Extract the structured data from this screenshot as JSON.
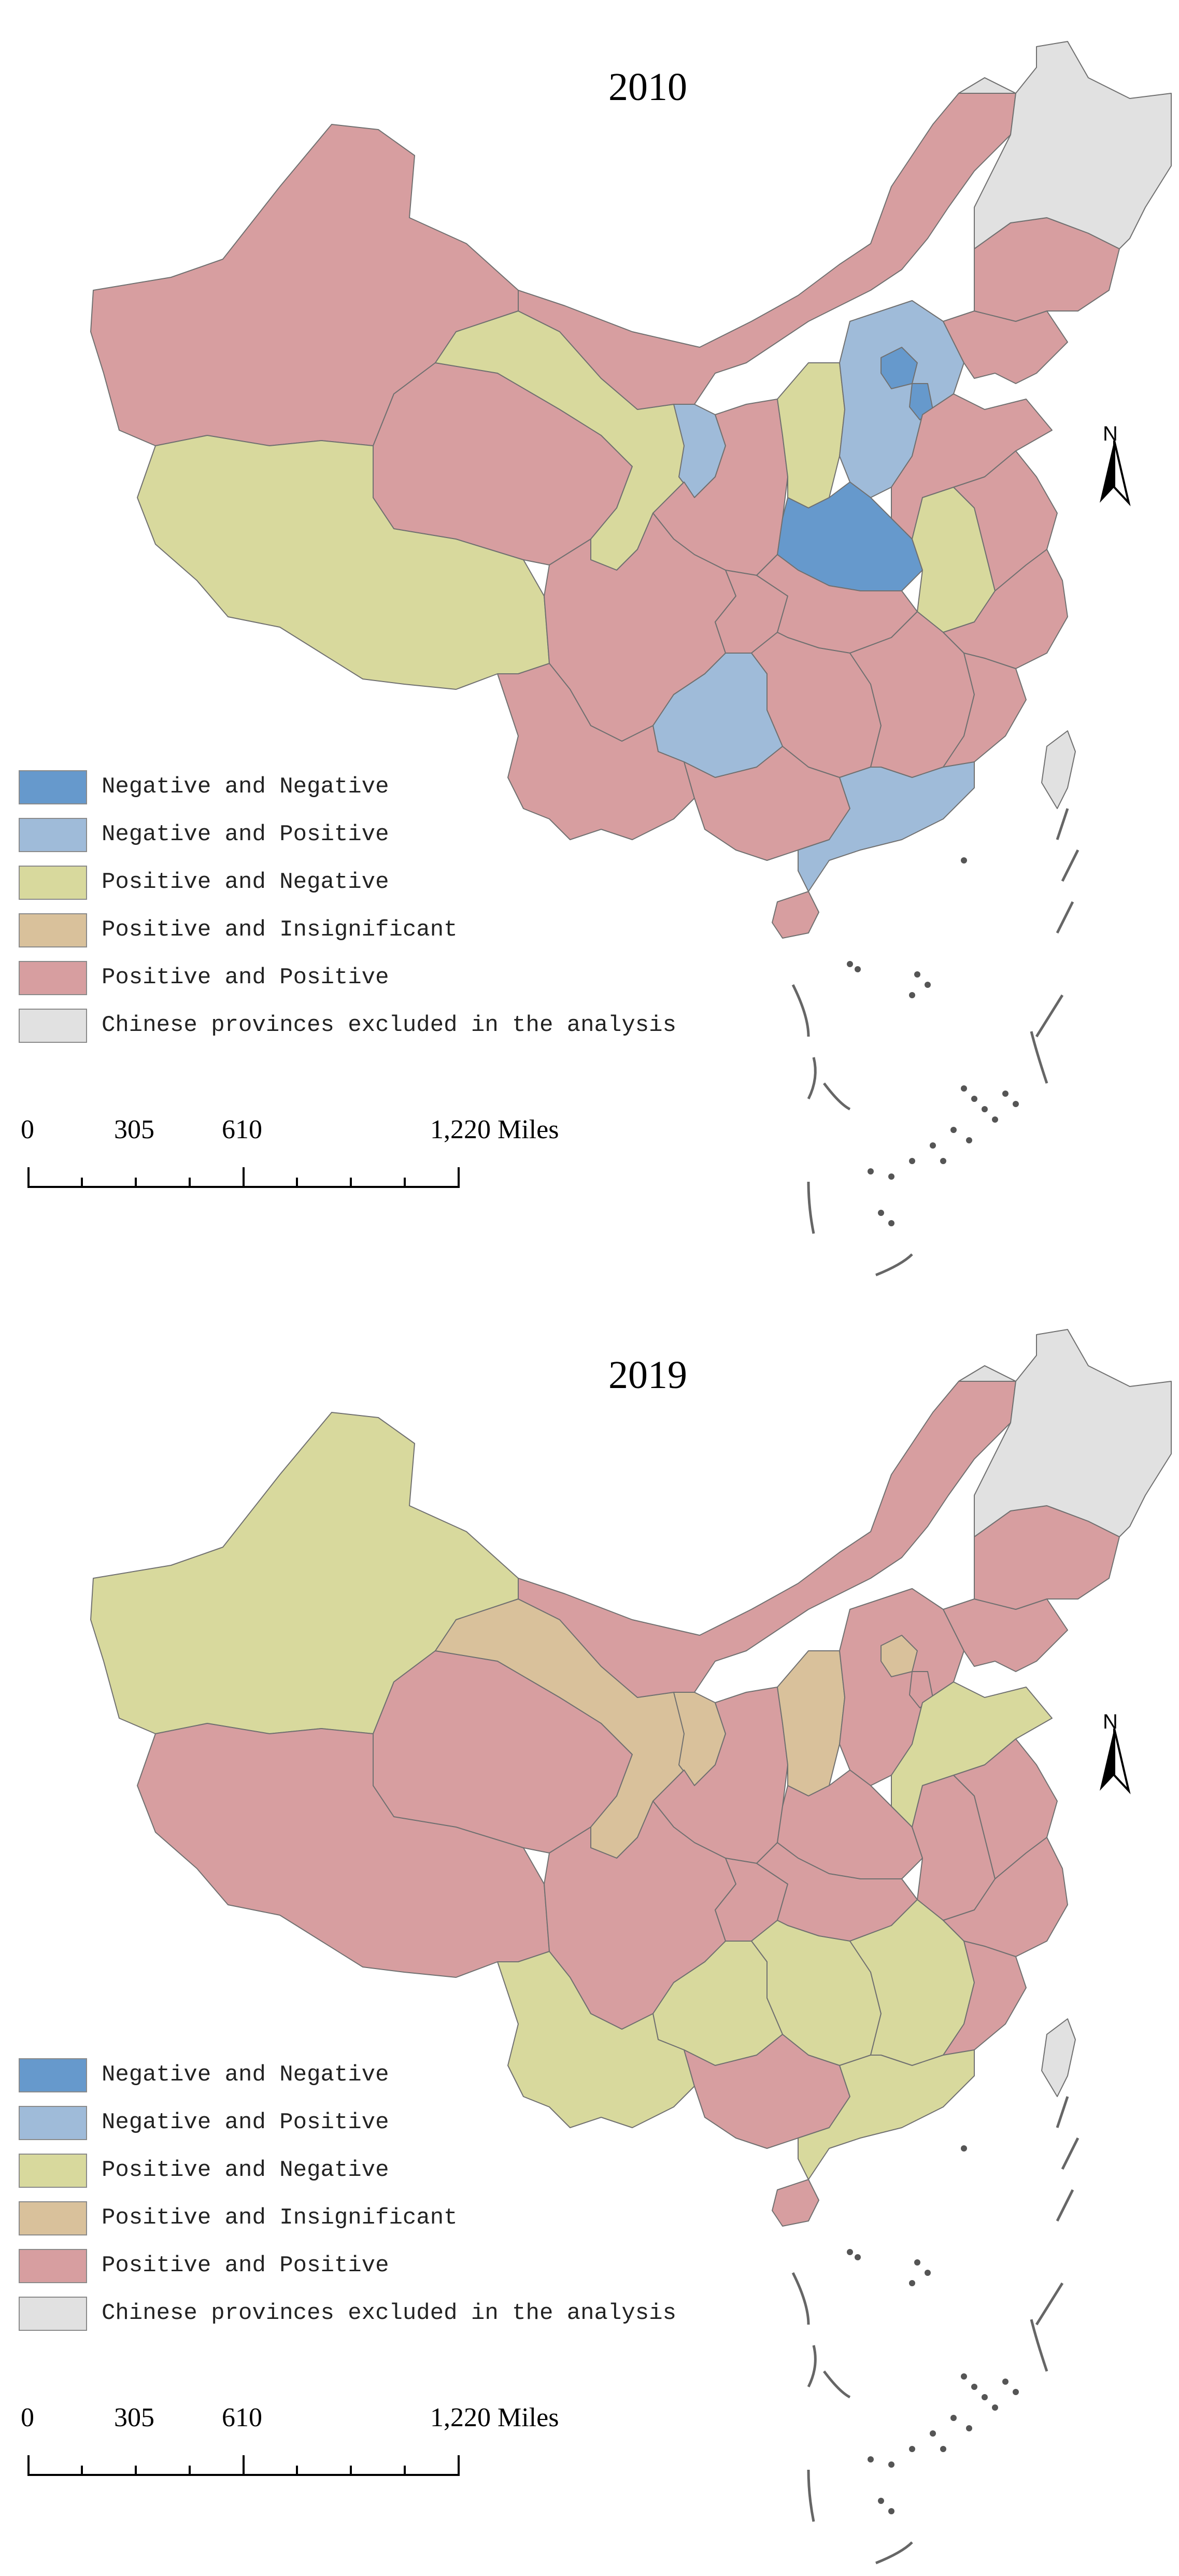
{
  "legend": [
    {
      "label": "Negative and Negative",
      "color": "#6699cc"
    },
    {
      "label": "Negative and Positive",
      "color": "#9fbbd9"
    },
    {
      "label": "Positive and Negative",
      "color": "#d8d99d"
    },
    {
      "label": "Positive and Insignificant",
      "color": "#d9c19b"
    },
    {
      "label": "Positive and Positive",
      "color": "#d79ea0"
    },
    {
      "label": "Chinese provinces excluded in the analysis",
      "color": "#e1e1e1"
    }
  ],
  "scale": {
    "labels": [
      "0",
      "305",
      "610",
      "1,220 Miles"
    ]
  },
  "north_label": "N",
  "maps": [
    {
      "year": "2010",
      "provinces": {
        "xinjiang": "Positive and Positive",
        "tibet": "Positive and Negative",
        "qinghai": "Positive and Positive",
        "gansu": "Positive and Negative",
        "inner_mongolia": "Positive and Positive",
        "ningxia": "Negative and Positive",
        "shaanxi": "Positive and Positive",
        "shanxi": "Positive and Negative",
        "hebei": "Negative and Positive",
        "beijing": "Negative and Negative",
        "tianjin": "Negative and Negative",
        "henan": "Negative and Negative",
        "shandong": "Positive and Positive",
        "anhui": "Positive and Negative",
        "jiangsu": "Positive and Positive",
        "sichuan": "Positive and Positive",
        "chongqing": "Positive and Positive",
        "hubei": "Positive and Positive",
        "hunan": "Positive and Positive",
        "jiangxi": "Positive and Positive",
        "zhejiang": "Positive and Positive",
        "fujian": "Positive and Positive",
        "guizhou": "Negative and Positive",
        "yunnan": "Positive and Positive",
        "guangxi": "Positive and Positive",
        "guangdong": "Negative and Positive",
        "hainan": "Positive and Positive",
        "liaoning": "Positive and Positive",
        "jilin": "Positive and Positive",
        "heilongjiang": "Chinese provinces excluded in the analysis",
        "taiwan": "Chinese provinces excluded in the analysis"
      }
    },
    {
      "year": "2019",
      "provinces": {
        "xinjiang": "Positive and Negative",
        "tibet": "Positive and Positive",
        "qinghai": "Positive and Positive",
        "gansu": "Positive and Insignificant",
        "inner_mongolia": "Positive and Positive",
        "ningxia": "Positive and Insignificant",
        "shaanxi": "Positive and Positive",
        "shanxi": "Positive and Insignificant",
        "hebei": "Positive and Positive",
        "beijing": "Positive and Insignificant",
        "tianjin": "Positive and Positive",
        "henan": "Positive and Positive",
        "shandong": "Positive and Negative",
        "anhui": "Positive and Positive",
        "jiangsu": "Positive and Positive",
        "sichuan": "Positive and Positive",
        "chongqing": "Positive and Positive",
        "hubei": "Positive and Positive",
        "hunan": "Positive and Negative",
        "jiangxi": "Positive and Negative",
        "zhejiang": "Positive and Positive",
        "fujian": "Positive and Positive",
        "guizhou": "Positive and Negative",
        "yunnan": "Positive and Negative",
        "guangxi": "Positive and Positive",
        "guangdong": "Positive and Negative",
        "hainan": "Positive and Positive",
        "liaoning": "Positive and Positive",
        "jilin": "Positive and Positive",
        "heilongjiang": "Chinese provinces excluded in the analysis",
        "taiwan": "Chinese provinces excluded in the analysis"
      }
    }
  ]
}
